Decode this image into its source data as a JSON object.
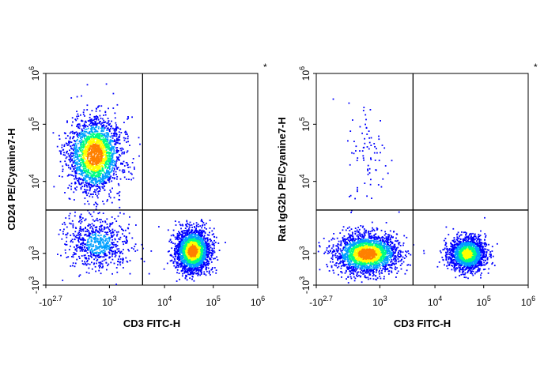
{
  "chart_data": [
    {
      "type": "scatter",
      "subtype": "flow-cytometry-density-dot-plot",
      "marker": "*",
      "xlabel": "CD3 FITC-H",
      "ylabel": "CD24 PE/Cyanine7-H",
      "x_scale": "biexponential",
      "y_scale": "biexponential",
      "xlim": [
        -500,
        1000000
      ],
      "ylim": [
        -1000,
        1000000
      ],
      "x_ticks": [
        {
          "label": "-10",
          "exp": "2.7"
        },
        {
          "label": "10",
          "exp": "3"
        },
        {
          "label": "10",
          "exp": "4"
        },
        {
          "label": "10",
          "exp": "5"
        },
        {
          "label": "10",
          "exp": "6"
        }
      ],
      "y_ticks": [
        {
          "label": "-10",
          "exp": "3"
        },
        {
          "label": "10",
          "exp": "3"
        },
        {
          "label": "10",
          "exp": "4"
        },
        {
          "label": "10",
          "exp": "5"
        },
        {
          "label": "10",
          "exp": "6"
        }
      ],
      "quadrant_gate": {
        "x": 4000,
        "y": 4000
      },
      "populations": [
        {
          "x_center": 600,
          "y_center": 30000,
          "x_spread": 0.25,
          "y_spread": 0.35,
          "relative_density": 1.0
        },
        {
          "x_center": 37000,
          "y_center": 1100,
          "x_spread": 0.16,
          "y_spread": 0.2,
          "relative_density": 1.0
        },
        {
          "x_center": 700,
          "y_center": 1400,
          "x_spread": 0.3,
          "y_spread": 0.25,
          "relative_density": 0.3
        }
      ],
      "grid": false
    },
    {
      "type": "scatter",
      "subtype": "flow-cytometry-density-dot-plot",
      "marker": "*",
      "xlabel": "CD3 FITC-H",
      "ylabel": "Rat IgG2b PE/Cyanine7-H",
      "x_scale": "biexponential",
      "y_scale": "biexponential",
      "xlim": [
        -500,
        1000000
      ],
      "ylim": [
        -1000,
        1000000
      ],
      "x_ticks": [
        {
          "label": "-10",
          "exp": "2.7"
        },
        {
          "label": "10",
          "exp": "3"
        },
        {
          "label": "10",
          "exp": "4"
        },
        {
          "label": "10",
          "exp": "5"
        },
        {
          "label": "10",
          "exp": "6"
        }
      ],
      "y_ticks": [
        {
          "label": "-10",
          "exp": "3"
        },
        {
          "label": "10",
          "exp": "3"
        },
        {
          "label": "10",
          "exp": "4"
        },
        {
          "label": "10",
          "exp": "5"
        },
        {
          "label": "10",
          "exp": "6"
        }
      ],
      "quadrant_gate": {
        "x": 4000,
        "y": 4000
      },
      "populations": [
        {
          "x_center": 650,
          "y_center": 1000,
          "x_spread": 0.3,
          "y_spread": 0.18,
          "relative_density": 1.0
        },
        {
          "x_center": 45000,
          "y_center": 1000,
          "x_spread": 0.17,
          "y_spread": 0.16,
          "relative_density": 0.75
        },
        {
          "x_center": 700,
          "y_center": 30000,
          "x_spread": 0.2,
          "y_spread": 0.5,
          "relative_density": 0.02
        }
      ],
      "grid": false
    }
  ],
  "colors": {
    "density_scale": [
      "#0000ff",
      "#00a0ff",
      "#00ff80",
      "#ffff00",
      "#ff8000",
      "#ff0000"
    ],
    "axis": "#000000",
    "gate_line": "#000000"
  }
}
